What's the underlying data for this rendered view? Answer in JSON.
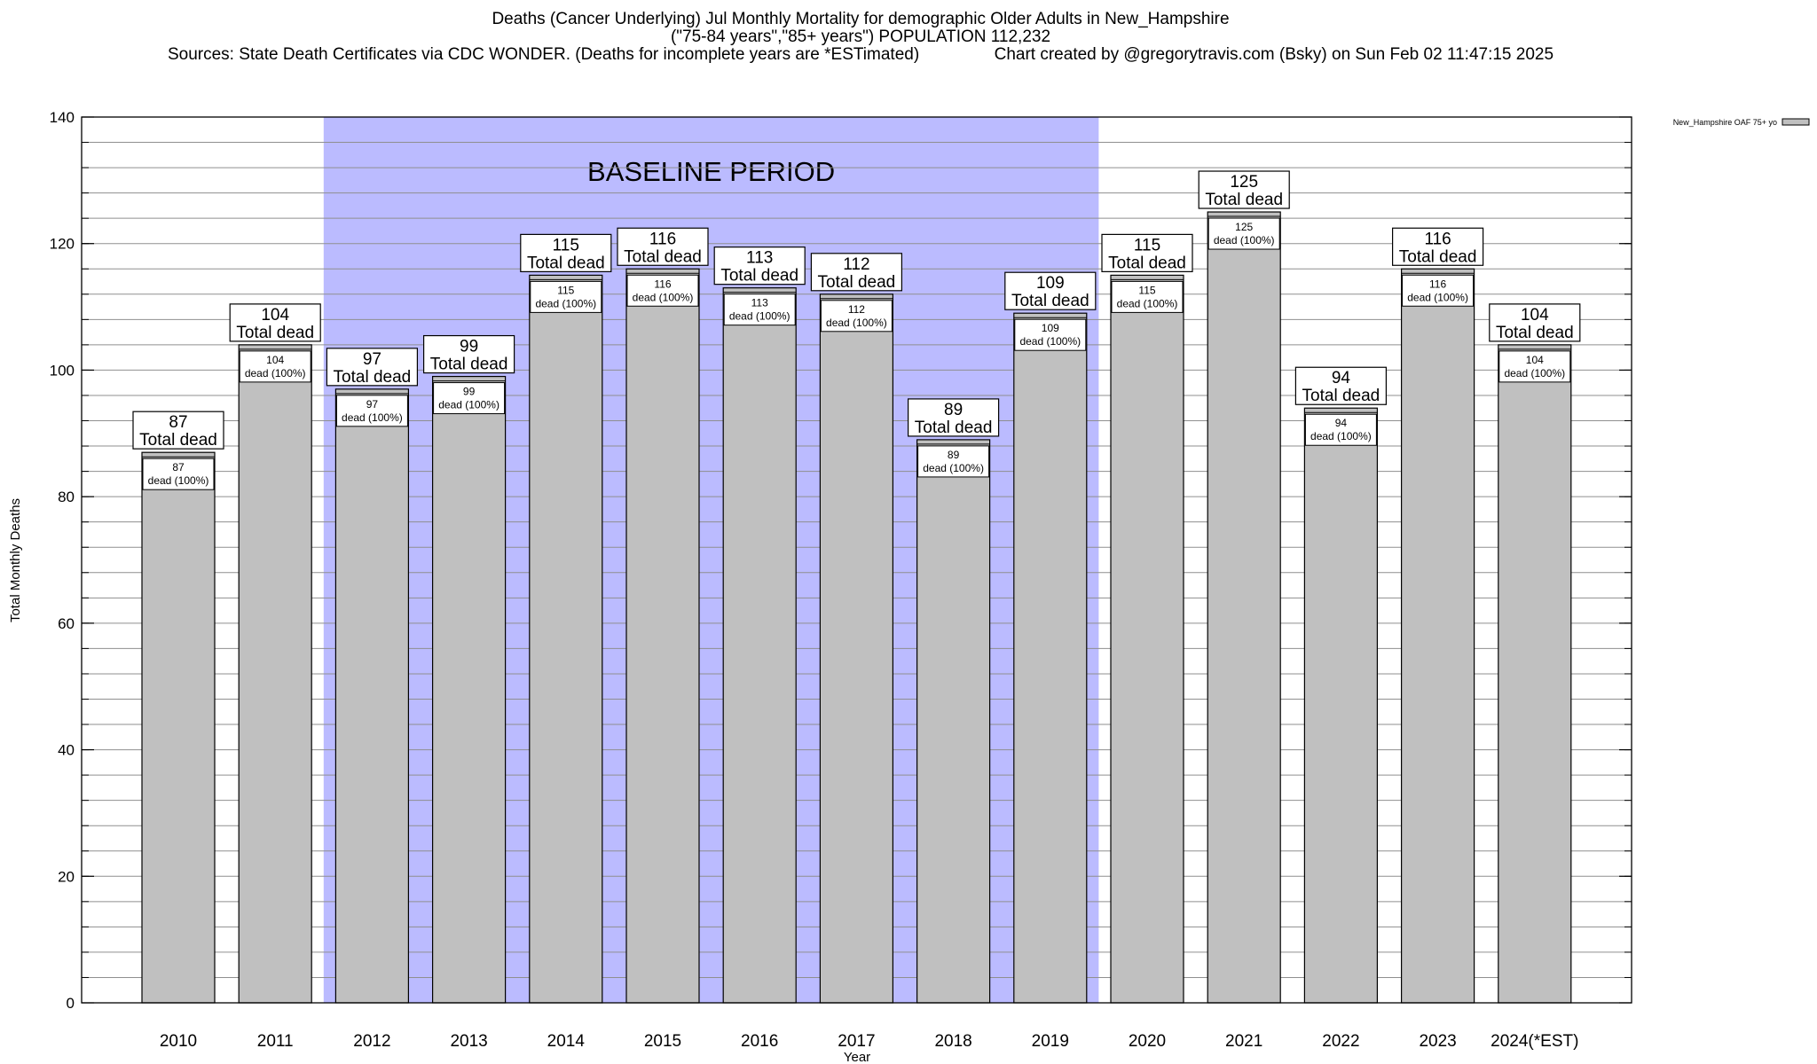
{
  "title": {
    "line1": "Deaths (Cancer Underlying) Jul Monthly Mortality for demographic Older Adults in New_Hampshire",
    "line2": "(\"75-84 years\",\"85+ years\") POPULATION 112,232",
    "line3": "Sources: State Death Certificates via CDC WONDER. (Deaths for incomplete years are *ESTimated)                Chart created by @gregorytravis.com (Bsky) on Sun Feb 02 11:47:15 2025"
  },
  "chart_data": {
    "type": "bar",
    "title": "Deaths (Cancer Underlying) Jul Monthly Mortality for demographic Older Adults in New_Hampshire",
    "xlabel": "Year",
    "ylabel": "Total Monthly Deaths",
    "ylim": [
      0,
      140
    ],
    "yticks": [
      0,
      20,
      40,
      60,
      80,
      100,
      120,
      140
    ],
    "grid": "horizontal minor every 4",
    "legend": {
      "placement": "top-right",
      "entry": "New_Hampshire OAF 75+ yo"
    },
    "categories": [
      "2010",
      "2011",
      "2012",
      "2013",
      "2014",
      "2015",
      "2016",
      "2017",
      "2018",
      "2019",
      "2020",
      "2021",
      "2022",
      "2023",
      "2024(*EST)"
    ],
    "series": [
      {
        "name": "New_Hampshire OAF 75+ yo",
        "values": [
          87,
          104,
          97,
          99,
          115,
          116,
          113,
          112,
          89,
          109,
          115,
          125,
          94,
          116,
          104
        ]
      }
    ],
    "top_label_suffix": "Total dead",
    "inner_label_suffix": "dead (100%)",
    "baseline": {
      "label": "BASELINE PERIOD",
      "from": "2012",
      "to": "2019"
    },
    "colors": {
      "bar": "#c0c0c0",
      "baseline": "#bbbbff"
    }
  }
}
